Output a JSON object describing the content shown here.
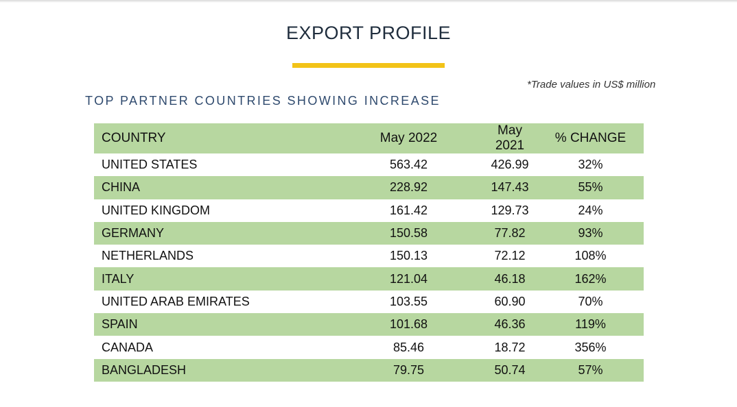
{
  "title": "EXPORT PROFILE",
  "note": "*Trade values in US$ million",
  "subtitle": "TOP PARTNER COUNTRIES SHOWING INCREASE",
  "colors": {
    "accent": "#f2c318",
    "row_green": "#b7d7a0"
  },
  "headers": [
    "COUNTRY",
    "May 2022",
    "May 2021",
    "% CHANGE"
  ],
  "rows": [
    [
      "UNITED STATES",
      "563.42",
      "426.99",
      "32%"
    ],
    [
      "CHINA",
      "228.92",
      "147.43",
      "55%"
    ],
    [
      "UNITED KINGDOM",
      "161.42",
      "129.73",
      "24%"
    ],
    [
      "GERMANY",
      "150.58",
      "77.82",
      "93%"
    ],
    [
      "NETHERLANDS",
      "150.13",
      "72.12",
      "108%"
    ],
    [
      "ITALY",
      "121.04",
      "46.18",
      "162%"
    ],
    [
      "UNITED ARAB EMIRATES",
      "103.55",
      "60.90",
      "70%"
    ],
    [
      "SPAIN",
      "101.68",
      "46.36",
      "119%"
    ],
    [
      "CANADA",
      "85.46",
      "18.72",
      "356%"
    ],
    [
      "BANGLADESH",
      "79.75",
      "50.74",
      "57%"
    ]
  ]
}
